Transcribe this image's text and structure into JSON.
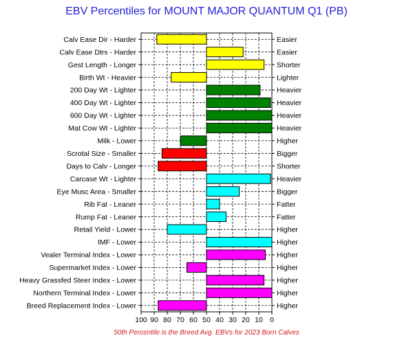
{
  "chart_data": {
    "type": "bar",
    "title": "EBV Percentiles for MOUNT MAJOR QUANTUM Q1 (PB)",
    "footnote": "50th Percentile is the Breed Avg. EBVs for 2023 Born Calves",
    "x_axis": {
      "ticks": [
        "100",
        "90",
        "80",
        "70",
        "60",
        "50",
        "40",
        "30",
        "20",
        "10",
        "0"
      ],
      "range": [
        100,
        0
      ],
      "reversed": true,
      "baseline": 50
    },
    "grid": true,
    "colors": {
      "yellow": "#ffff00",
      "green": "#008000",
      "red": "#ff0000",
      "cyan": "#00ffff",
      "magenta": "#ff00ff"
    },
    "traits": [
      {
        "left_label": "Calv Ease Dir - Harder",
        "right_label": "Easier",
        "value": 88,
        "color": "yellow"
      },
      {
        "left_label": "Calv Ease Dtrs - Harder",
        "right_label": "Easier",
        "value": 22,
        "color": "yellow"
      },
      {
        "left_label": "Gest Length - Longer",
        "right_label": "Shorter",
        "value": 6,
        "color": "yellow"
      },
      {
        "left_label": "Birth Wt - Heavier",
        "right_label": "Lighter",
        "value": 77,
        "color": "yellow"
      },
      {
        "left_label": "200 Day Wt - Lighter",
        "right_label": "Heavier",
        "value": 9,
        "color": "green"
      },
      {
        "left_label": "400 Day Wt - Lighter",
        "right_label": "Heavier",
        "value": 1,
        "color": "green"
      },
      {
        "left_label": "600 Day Wt - Lighter",
        "right_label": "Heavier",
        "value": 0,
        "color": "green"
      },
      {
        "left_label": "Mat Cow Wt - Lighter",
        "right_label": "Heavier",
        "value": 0,
        "color": "green"
      },
      {
        "left_label": "Milk - Lower",
        "right_label": "Higher",
        "value": 70,
        "color": "green"
      },
      {
        "left_label": "Scrotal Size - Smaller",
        "right_label": "Bigger",
        "value": 84,
        "color": "red"
      },
      {
        "left_label": "Days to Calv - Longer",
        "right_label": "Shorter",
        "value": 87,
        "color": "red"
      },
      {
        "left_label": "Carcase Wt - Lighter",
        "right_label": "Heavier",
        "value": 1,
        "color": "cyan"
      },
      {
        "left_label": "Eye Musc Area - Smaller",
        "right_label": "Bigger",
        "value": 25,
        "color": "cyan"
      },
      {
        "left_label": "Rib Fat - Leaner",
        "right_label": "Fatter",
        "value": 40,
        "color": "cyan"
      },
      {
        "left_label": "Rump Fat - Leaner",
        "right_label": "Fatter",
        "value": 35,
        "color": "cyan"
      },
      {
        "left_label": "Retail Yield - Lower",
        "right_label": "Higher",
        "value": 80,
        "color": "cyan"
      },
      {
        "left_label": "IMF - Lower",
        "right_label": "Higher",
        "value": 0,
        "color": "cyan"
      },
      {
        "left_label": "Vealer Terminal Index - Lower",
        "right_label": "Higher",
        "value": 5,
        "color": "magenta"
      },
      {
        "left_label": "Supermarket Index - Lower",
        "right_label": "Higher",
        "value": 65,
        "color": "magenta"
      },
      {
        "left_label": "Heavy Grassfed Steer Index - Lower",
        "right_label": "Higher",
        "value": 6,
        "color": "magenta"
      },
      {
        "left_label": "Northern Terminal Index - Lower",
        "right_label": "Higher",
        "value": 0,
        "color": "magenta"
      },
      {
        "left_label": "Breed Replacement Index - Lower",
        "right_label": "Higher",
        "value": 87,
        "color": "magenta"
      }
    ]
  }
}
